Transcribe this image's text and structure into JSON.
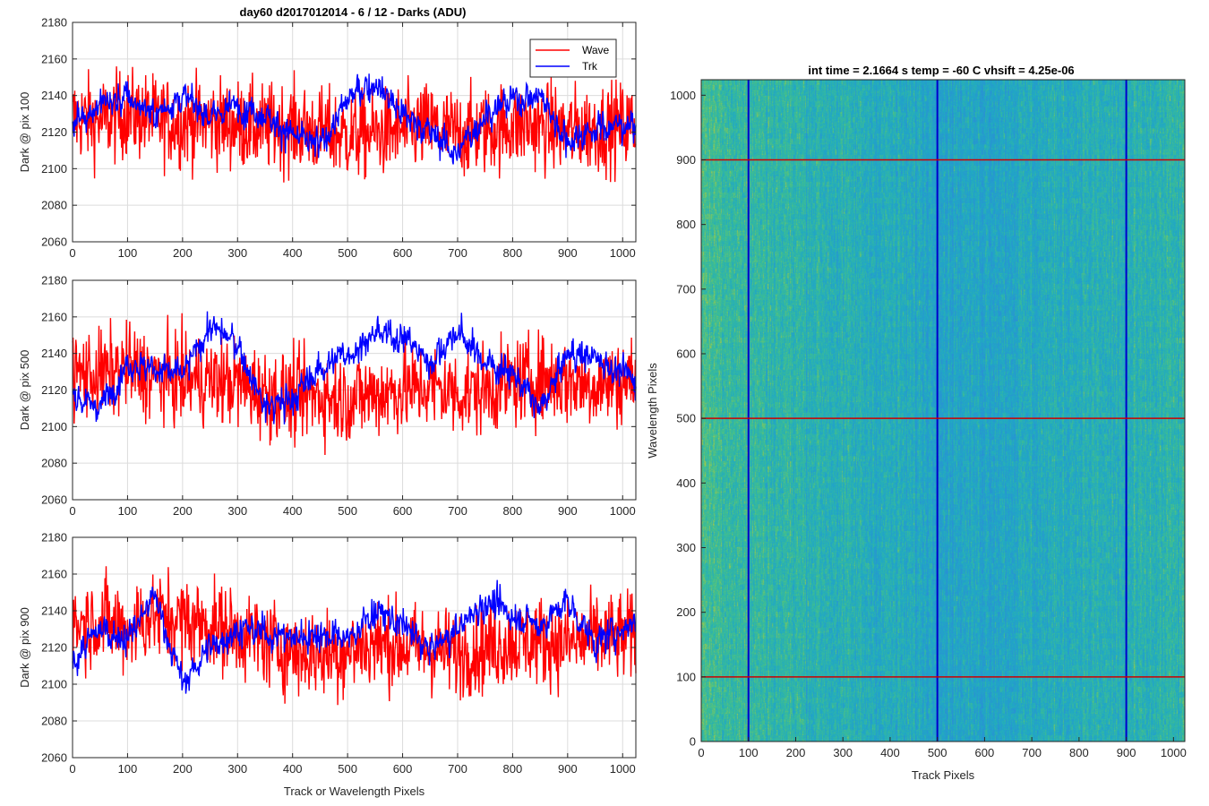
{
  "figure": {
    "title": "day60 d2017012014 - 6 / 12 - Darks (ADU)",
    "xlabel_bottom": "Track or Wavelength Pixels"
  },
  "chart_data": [
    {
      "type": "line",
      "ylabel": "Dark @ pix 100",
      "xlim": [
        0,
        1024
      ],
      "ylim": [
        2060,
        2180
      ],
      "xticks": [
        0,
        100,
        200,
        300,
        400,
        500,
        600,
        700,
        800,
        900,
        1000
      ],
      "yticks": [
        2060,
        2080,
        2100,
        2120,
        2140,
        2160,
        2180
      ],
      "grid": true,
      "legend": {
        "placement": "top-right",
        "entries": [
          "Wave",
          "Trk"
        ]
      },
      "series": [
        {
          "name": "Wave",
          "color": "#ff0000",
          "x": [
            0,
            50,
            100,
            150,
            200,
            250,
            300,
            350,
            400,
            450,
            500,
            550,
            600,
            650,
            700,
            750,
            800,
            850,
            900,
            950,
            1024
          ],
          "values": [
            2128,
            2126,
            2130,
            2127,
            2125,
            2126,
            2124,
            2122,
            2123,
            2120,
            2118,
            2119,
            2121,
            2123,
            2119,
            2121,
            2124,
            2123,
            2121,
            2122,
            2124
          ]
        },
        {
          "name": "Trk",
          "color": "#0000ff",
          "x": [
            0,
            50,
            100,
            150,
            200,
            250,
            300,
            350,
            400,
            450,
            500,
            550,
            600,
            650,
            700,
            750,
            800,
            850,
            900,
            950,
            1024
          ],
          "values": [
            2125,
            2135,
            2138,
            2130,
            2140,
            2128,
            2135,
            2130,
            2118,
            2112,
            2138,
            2148,
            2130,
            2120,
            2108,
            2130,
            2138,
            2140,
            2115,
            2122,
            2125
          ]
        }
      ]
    },
    {
      "type": "line",
      "ylabel": "Dark @ pix 500",
      "xlim": [
        0,
        1024
      ],
      "ylim": [
        2060,
        2180
      ],
      "xticks": [
        0,
        100,
        200,
        300,
        400,
        500,
        600,
        700,
        800,
        900,
        1000
      ],
      "yticks": [
        2060,
        2080,
        2100,
        2120,
        2140,
        2160,
        2180
      ],
      "grid": true,
      "series": [
        {
          "name": "Wave",
          "color": "#ff0000",
          "x": [
            0,
            50,
            100,
            150,
            200,
            250,
            300,
            350,
            400,
            450,
            500,
            550,
            600,
            650,
            700,
            750,
            800,
            850,
            900,
            950,
            1024
          ],
          "values": [
            2130,
            2128,
            2132,
            2127,
            2126,
            2125,
            2124,
            2118,
            2116,
            2117,
            2115,
            2118,
            2120,
            2122,
            2118,
            2120,
            2124,
            2126,
            2125,
            2123,
            2126
          ]
        },
        {
          "name": "Trk",
          "color": "#0000ff",
          "x": [
            0,
            50,
            100,
            150,
            200,
            250,
            300,
            350,
            400,
            450,
            500,
            550,
            600,
            650,
            700,
            750,
            800,
            850,
            900,
            950,
            1024
          ],
          "values": [
            2118,
            2110,
            2135,
            2132,
            2128,
            2155,
            2145,
            2110,
            2115,
            2132,
            2140,
            2150,
            2150,
            2135,
            2152,
            2135,
            2130,
            2108,
            2140,
            2138,
            2125
          ]
        }
      ]
    },
    {
      "type": "line",
      "ylabel": "Dark @ pix 900",
      "xlabel": "Track or Wavelength Pixels",
      "xlim": [
        0,
        1024
      ],
      "ylim": [
        2060,
        2180
      ],
      "xticks": [
        0,
        100,
        200,
        300,
        400,
        500,
        600,
        700,
        800,
        900,
        1000
      ],
      "yticks": [
        2060,
        2080,
        2100,
        2120,
        2140,
        2160,
        2180
      ],
      "grid": true,
      "series": [
        {
          "name": "Wave",
          "color": "#ff0000",
          "x": [
            0,
            50,
            100,
            150,
            200,
            250,
            300,
            350,
            400,
            450,
            500,
            550,
            600,
            650,
            700,
            750,
            800,
            850,
            900,
            950,
            1024
          ],
          "values": [
            2132,
            2135,
            2130,
            2138,
            2135,
            2132,
            2128,
            2123,
            2118,
            2116,
            2118,
            2122,
            2121,
            2119,
            2117,
            2120,
            2123,
            2124,
            2122,
            2125,
            2126
          ]
        },
        {
          "name": "Trk",
          "color": "#0000ff",
          "x": [
            0,
            50,
            100,
            150,
            200,
            250,
            300,
            350,
            400,
            450,
            500,
            550,
            600,
            650,
            700,
            750,
            800,
            850,
            900,
            950,
            1024
          ],
          "values": [
            2112,
            2130,
            2125,
            2148,
            2100,
            2120,
            2130,
            2128,
            2125,
            2128,
            2124,
            2140,
            2132,
            2118,
            2130,
            2145,
            2138,
            2132,
            2145,
            2122,
            2135
          ]
        }
      ]
    },
    {
      "type": "heatmap",
      "title": "int time = 2.1664 s    temp = -60 C    vhsift = 4.25e-06",
      "xlabel": "Track Pixels",
      "ylabel": "Wavelength Pixels",
      "xlim": [
        0,
        1024
      ],
      "ylim": [
        0,
        1024
      ],
      "xticks": [
        0,
        100,
        200,
        300,
        400,
        500,
        600,
        700,
        800,
        900,
        1000
      ],
      "yticks": [
        0,
        100,
        200,
        300,
        400,
        500,
        600,
        700,
        800,
        900,
        1000
      ],
      "colormap_colors": [
        "#2a8fd6",
        "#20a9c4",
        "#3fbf8f",
        "#b5c93c"
      ],
      "column_mean_profile": {
        "x": [
          0,
          100,
          200,
          300,
          400,
          500,
          600,
          700,
          800,
          900,
          1024
        ],
        "level": [
          0.65,
          0.55,
          0.5,
          0.42,
          0.38,
          0.3,
          0.3,
          0.35,
          0.42,
          0.4,
          0.5
        ]
      },
      "vertical_lines": {
        "color": "#0000cc",
        "x": [
          100,
          500,
          900
        ]
      },
      "horizontal_lines": {
        "color": "#cc0000",
        "y": [
          100,
          500,
          900
        ]
      }
    }
  ]
}
